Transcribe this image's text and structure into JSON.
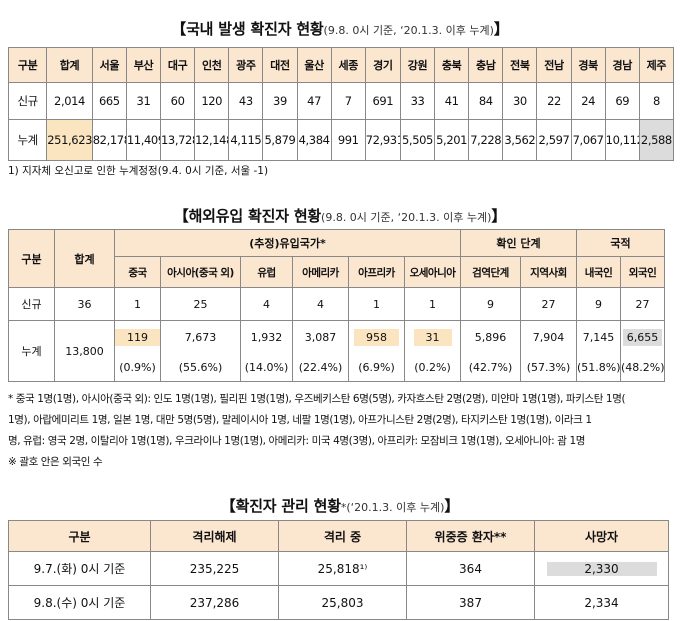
{
  "t1": {
    "title": "【국내 발생 확진자 현황",
    "subtitle": "(9.8. 0시 기준, ‘20.1.3. 이후 누계)",
    "title_end": "】",
    "headers": [
      "구분",
      "합계",
      "서울",
      "부산",
      "대구",
      "인천",
      "광주",
      "대전",
      "울산",
      "세종",
      "경기",
      "강원",
      "충북",
      "충남",
      "전북",
      "전남",
      "경북",
      "경남",
      "제주"
    ],
    "new_label": "신규",
    "new": [
      "2,014",
      "665",
      "31",
      "60",
      "120",
      "43",
      "39",
      "47",
      "7",
      "691",
      "33",
      "41",
      "84",
      "30",
      "22",
      "24",
      "69",
      "8"
    ],
    "cum_label": "누계",
    "cum": [
      "251,623¹⁾",
      "82,178¹⁾",
      "11,409",
      "13,728",
      "12,148",
      "4,115",
      "5,879",
      "4,384",
      "991",
      "72,931",
      "5,505",
      "5,201",
      "7,228",
      "3,562",
      "2,597",
      "7,067",
      "10,112",
      "2,588"
    ],
    "note": "1) 지자체 오신고로 인한 누계정정(9.4. 0시 기준, 서울 -1)"
  },
  "t2": {
    "title": "【해외유입 확진자 현황",
    "subtitle": "(9.8. 0시 기준, ‘20.1.3. 이후 누계)",
    "title_end": "】",
    "col_gubun": "구분",
    "col_total": "합계",
    "grp_country": "(추정)유입국가*",
    "grp_stage": "확인 단계",
    "grp_nation": "국적",
    "sub": [
      "중국",
      "아시아(중국 외)",
      "유럽",
      "아메리카",
      "아프리카",
      "오세아니아",
      "검역단계",
      "지역사회",
      "내국인",
      "외국인"
    ],
    "new_label": "신규",
    "new_total": "36",
    "new": [
      "1",
      "25",
      "4",
      "4",
      "1",
      "1",
      "9",
      "27",
      "9",
      "27"
    ],
    "cum_label": "누계",
    "cum_total": "13,800",
    "cum": [
      "119",
      "7,673",
      "1,932",
      "3,087",
      "958",
      "31",
      "5,896",
      "7,904",
      "7,145",
      "6,655"
    ],
    "pct": [
      "(0.9%)",
      "(55.6%)",
      "(14.0%)",
      "(22.4%)",
      "(6.9%)",
      "(0.2%)",
      "(42.7%)",
      "(57.3%)",
      "(51.8%)",
      "(48.2%)"
    ],
    "foot1": "* 중국 1명(1명), 아시아(중국 외): 인도 1명(1명), 필리핀 1명(1명), 우즈베키스탄 6명(5명), 카자흐스탄 2명(2명), 미얀마 1명(1명), 파키스탄 1명(",
    "foot2": "1명), 아랍에미리트 1명, 일본 1명, 대만 5명(5명), 말레이시아 1명, 네팔 1명(1명), 아프가니스탄 2명(2명), 타지키스탄 1명(1명), 이라크 1",
    "foot3": "명, 유럽: 영국 2명, 이탈리아 1명(1명), 우크라이나 1명(1명), 아메리카: 미국 4명(3명), 아프리카: 모잠비크 1명(1명), 오세아니아: 괌 1명",
    "foot4": "※ 괄호 안은 외국인 수"
  },
  "t3": {
    "title": "【확진자 관리 현황",
    "title_sup": "*",
    "subtitle": "(‘20.1.3. 이후 누계)",
    "title_end": "】",
    "headers": [
      "구분",
      "격리해제",
      "격리 중",
      "위중증 환자**",
      "사망자"
    ],
    "rows": [
      [
        "9.7.(화) 0시 기준",
        "235,225",
        "25,818¹⁾",
        "364",
        "2,330"
      ],
      [
        "9.8.(수) 0시 기준",
        "237,286",
        "25,803",
        "387",
        "2,334"
      ]
    ]
  }
}
